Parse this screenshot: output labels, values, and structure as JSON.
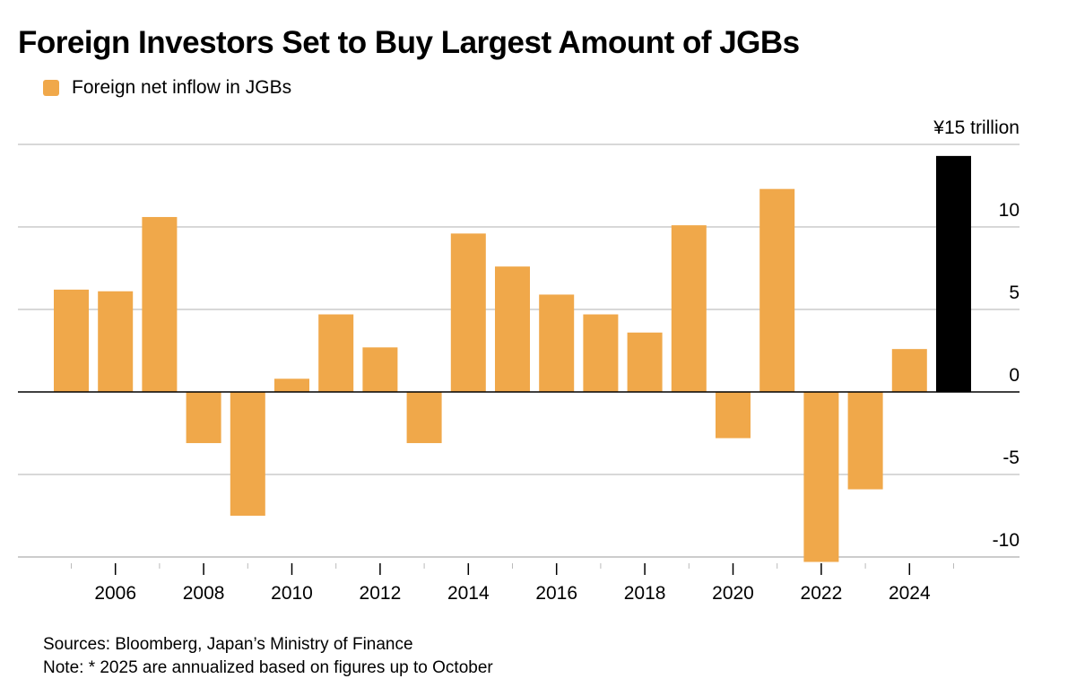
{
  "chart_data": {
    "type": "bar",
    "title": "Foreign Investors Set to Buy Largest Amount of JGBs",
    "legend": [
      {
        "name": "Foreign net inflow in JGBs",
        "color": "#F0A84A"
      }
    ],
    "highlight_color": "#000000",
    "categories": [
      "2005",
      "2006",
      "2007",
      "2008",
      "2009",
      "2010",
      "2011",
      "2012",
      "2013",
      "2014",
      "2015",
      "2016",
      "2017",
      "2018",
      "2019",
      "2020",
      "2021",
      "2022",
      "2023",
      "2024",
      "2025"
    ],
    "values": [
      6.2,
      6.1,
      10.6,
      -3.1,
      -7.5,
      0.8,
      4.7,
      2.7,
      -3.1,
      9.6,
      7.6,
      5.9,
      4.7,
      3.6,
      10.1,
      -2.8,
      12.3,
      -10.3,
      -5.9,
      2.6,
      14.3
    ],
    "highlighted": [
      "2025"
    ],
    "x_tick_labels": [
      "2006",
      "2008",
      "2010",
      "2012",
      "2014",
      "2016",
      "2018",
      "2020",
      "2022",
      "2024"
    ],
    "y_ticks": [
      {
        "value": 15,
        "label": "¥15 trillion"
      },
      {
        "value": 10,
        "label": "10"
      },
      {
        "value": 5,
        "label": "5"
      },
      {
        "value": 0,
        "label": "0"
      },
      {
        "value": -5,
        "label": "-5"
      },
      {
        "value": -10,
        "label": "-10"
      }
    ],
    "ylim": [
      -10,
      15
    ],
    "grid": true,
    "legend_position": "top-left",
    "xlabel": "",
    "ylabel": ""
  },
  "footer": {
    "sources": "Sources: Bloomberg, Japan’s Ministry of Finance",
    "note": "Note: * 2025 are annualized based on figures up to October"
  }
}
